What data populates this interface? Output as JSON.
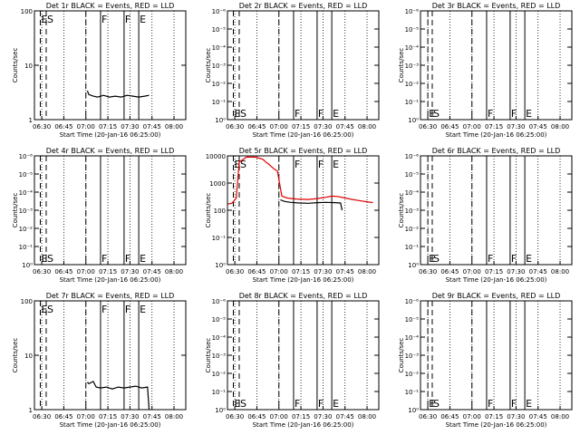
{
  "figure": {
    "background": "#ffffff",
    "colors": {
      "events": "#000000",
      "lld": "#e00000"
    }
  },
  "chart_data": [
    {
      "id": "det1r",
      "title": "Det 1r  BLACK = Events, RED = LLD",
      "xlabel": "Start Time (20-Jan-16 06:25:00)",
      "ylabel": "Counts/sec",
      "type": "line",
      "yscale": "log",
      "ylim": [
        1,
        100
      ],
      "y_ticks": [
        {
          "v": 1,
          "l": "1"
        },
        {
          "v": 10,
          "l": "10"
        },
        {
          "v": 100,
          "l": "100"
        }
      ],
      "x_ticks": [
        "06:30",
        "06:45",
        "07:00",
        "07:15",
        "07:30",
        "07:45",
        "08:00"
      ],
      "xlim": [
        "06:25",
        "08:08"
      ],
      "markers": [
        {
          "t": "06:29",
          "label": "E",
          "style": "dashed"
        },
        {
          "t": "06:33",
          "label": "S",
          "style": "dashed"
        },
        {
          "t": "07:00",
          "label": "",
          "style": "dashed"
        },
        {
          "t": "07:10",
          "label": "F",
          "style": "solid"
        },
        {
          "t": "07:26",
          "label": "F",
          "style": "solid"
        },
        {
          "t": "07:36",
          "label": "E",
          "style": "solid"
        }
      ],
      "label_position": "top",
      "series": [
        {
          "role": "events",
          "x": [
            "07:01",
            "07:02",
            "07:05",
            "07:08",
            "07:12",
            "07:16",
            "07:20",
            "07:24",
            "07:28",
            "07:32",
            "07:36",
            "07:40",
            "07:43"
          ],
          "y": [
            3.4,
            2.9,
            2.7,
            2.6,
            2.8,
            2.6,
            2.7,
            2.6,
            2.8,
            2.7,
            2.6,
            2.7,
            2.8
          ]
        }
      ]
    },
    {
      "id": "det2r",
      "title": "Det 2r  BLACK = Events, RED = LLD",
      "xlabel": "Start Time (20-Jan-16 06:25:00)",
      "ylabel": "Counts/sec",
      "type": "line",
      "yscale": "log",
      "ylim": [
        1,
        1000000
      ],
      "y_ticks": [
        {
          "v": 1,
          "l": "10⁰"
        },
        {
          "v": 10,
          "l": "10⁻¹"
        },
        {
          "v": 100,
          "l": "10⁻²"
        },
        {
          "v": 1000,
          "l": "10⁻³"
        },
        {
          "v": 10000,
          "l": "10⁻⁴"
        },
        {
          "v": 100000,
          "l": "10⁻⁵"
        },
        {
          "v": 1000000,
          "l": "10⁻⁶"
        }
      ],
      "x_ticks": [
        "06:30",
        "06:45",
        "07:00",
        "07:15",
        "07:30",
        "07:45",
        "08:00"
      ],
      "xlim": [
        "06:25",
        "08:08"
      ],
      "markers": [
        {
          "t": "06:29",
          "label": "E",
          "style": "dashed"
        },
        {
          "t": "06:33",
          "label": "S",
          "style": "dashed"
        },
        {
          "t": "07:00",
          "label": "",
          "style": "dashed"
        },
        {
          "t": "07:10",
          "label": "F",
          "style": "solid"
        },
        {
          "t": "07:26",
          "label": "F",
          "style": "solid"
        },
        {
          "t": "07:36",
          "label": "E",
          "style": "solid"
        }
      ],
      "label_position": "bottom",
      "series": []
    },
    {
      "id": "det3r",
      "title": "Det 3r  BLACK = Events, RED = LLD",
      "xlabel": "Start Time (20-Jan-16 06:25:00)",
      "ylabel": "Counts/sec",
      "type": "line",
      "yscale": "log",
      "ylim": [
        1,
        1000000
      ],
      "y_ticks": [
        {
          "v": 1,
          "l": "10⁰"
        },
        {
          "v": 10,
          "l": "10⁻¹"
        },
        {
          "v": 100,
          "l": "10⁻²"
        },
        {
          "v": 1000,
          "l": "10⁻³"
        },
        {
          "v": 10000,
          "l": "10⁻⁴"
        },
        {
          "v": 100000,
          "l": "10⁻⁵"
        },
        {
          "v": 1000000,
          "l": "10⁻⁶"
        }
      ],
      "x_ticks": [
        "06:30",
        "06:45",
        "07:00",
        "07:15",
        "07:30",
        "07:45",
        "08:00"
      ],
      "xlim": [
        "06:25",
        "08:08"
      ],
      "markers": [
        {
          "t": "06:30",
          "label": "E",
          "style": "dashed"
        },
        {
          "t": "06:33",
          "label": "S",
          "style": "dashed"
        },
        {
          "t": "07:00",
          "label": "",
          "style": "dashed"
        },
        {
          "t": "07:10",
          "label": "F",
          "style": "solid"
        },
        {
          "t": "07:26",
          "label": "F",
          "style": "solid"
        },
        {
          "t": "07:36",
          "label": "E",
          "style": "solid"
        }
      ],
      "label_position": "bottom",
      "series": []
    },
    {
      "id": "det4r",
      "title": "Det 4r  BLACK = Events, RED = LLD",
      "xlabel": "Start Time (20-Jan-16 06:25:00)",
      "ylabel": "Counts/sec",
      "type": "line",
      "yscale": "log",
      "ylim": [
        1,
        1000000
      ],
      "y_ticks": [
        {
          "v": 1,
          "l": "10⁰"
        },
        {
          "v": 10,
          "l": "10⁻¹"
        },
        {
          "v": 100,
          "l": "10⁻²"
        },
        {
          "v": 1000,
          "l": "10⁻³"
        },
        {
          "v": 10000,
          "l": "10⁻⁴"
        },
        {
          "v": 100000,
          "l": "10⁻⁵"
        },
        {
          "v": 1000000,
          "l": "10⁻⁶"
        }
      ],
      "x_ticks": [
        "06:30",
        "06:45",
        "07:00",
        "07:15",
        "07:30",
        "07:45",
        "08:00"
      ],
      "xlim": [
        "06:25",
        "08:08"
      ],
      "markers": [
        {
          "t": "06:29",
          "label": "E",
          "style": "dashed"
        },
        {
          "t": "06:33",
          "label": "S",
          "style": "dashed"
        },
        {
          "t": "07:00",
          "label": "",
          "style": "dashed"
        },
        {
          "t": "07:10",
          "label": "F",
          "style": "solid"
        },
        {
          "t": "07:26",
          "label": "F",
          "style": "solid"
        },
        {
          "t": "07:36",
          "label": "E",
          "style": "solid"
        }
      ],
      "label_position": "bottom",
      "series": []
    },
    {
      "id": "det5r",
      "title": "Det 5r  BLACK = Events, RED = LLD",
      "xlabel": "Start Time (20-Jan-16 06:25:00)",
      "ylabel": "Counts/sec",
      "type": "line",
      "yscale": "log",
      "ylim": [
        1,
        10000
      ],
      "y_ticks": [
        {
          "v": 1,
          "l": "10⁰"
        },
        {
          "v": 10,
          "l": "10⁻¹"
        },
        {
          "v": 100,
          "l": "100"
        },
        {
          "v": 1000,
          "l": "1000"
        },
        {
          "v": 10000,
          "l": "10000"
        }
      ],
      "x_ticks": [
        "06:30",
        "06:45",
        "07:00",
        "07:15",
        "07:30",
        "07:45",
        "08:00"
      ],
      "xlim": [
        "06:25",
        "08:08"
      ],
      "markers": [
        {
          "t": "06:29",
          "label": "E",
          "style": "dashed"
        },
        {
          "t": "06:33",
          "label": "S",
          "style": "dashed"
        },
        {
          "t": "07:00",
          "label": "",
          "style": "dashed"
        },
        {
          "t": "07:10",
          "label": "F",
          "style": "solid"
        },
        {
          "t": "07:26",
          "label": "F",
          "style": "solid"
        },
        {
          "t": "07:36",
          "label": "E",
          "style": "solid"
        }
      ],
      "label_position": "top",
      "series": [
        {
          "role": "lld",
          "x": [
            "06:25",
            "06:28",
            "06:31",
            "06:33",
            "06:38",
            "06:44",
            "06:49",
            "06:51",
            "06:53",
            "06:55",
            "06:57",
            "06:59",
            "07:02",
            "07:06",
            "07:12",
            "07:20",
            "07:26",
            "07:32",
            "07:36",
            "07:40",
            "07:44",
            "07:50",
            "07:56",
            "08:04"
          ],
          "y": [
            170,
            180,
            280,
            6000,
            9000,
            9000,
            7500,
            6000,
            5000,
            4000,
            3200,
            2800,
            330,
            280,
            260,
            250,
            270,
            300,
            330,
            320,
            290,
            250,
            220,
            190
          ]
        },
        {
          "role": "events",
          "x": [
            "07:01",
            "07:04",
            "07:08",
            "07:14",
            "07:20",
            "07:26",
            "07:32",
            "07:38",
            "07:42",
            "07:43"
          ],
          "y": [
            240,
            210,
            195,
            185,
            180,
            190,
            195,
            190,
            185,
            100
          ]
        }
      ]
    },
    {
      "id": "det6r",
      "title": "Det 6r  BLACK = Events, RED = LLD",
      "xlabel": "Start Time (20-Jan-16 06:25:00)",
      "ylabel": "Counts/sec",
      "type": "line",
      "yscale": "log",
      "ylim": [
        1,
        1000000
      ],
      "y_ticks": [
        {
          "v": 1,
          "l": "10⁰"
        },
        {
          "v": 10,
          "l": "10⁻¹"
        },
        {
          "v": 100,
          "l": "10⁻²"
        },
        {
          "v": 1000,
          "l": "10⁻³"
        },
        {
          "v": 10000,
          "l": "10⁻⁴"
        },
        {
          "v": 100000,
          "l": "10⁻⁵"
        },
        {
          "v": 1000000,
          "l": "10⁻⁶"
        }
      ],
      "x_ticks": [
        "06:30",
        "06:45",
        "07:00",
        "07:15",
        "07:30",
        "07:45",
        "08:00"
      ],
      "xlim": [
        "06:25",
        "08:08"
      ],
      "markers": [
        {
          "t": "06:30",
          "label": "E",
          "style": "dashed"
        },
        {
          "t": "06:33",
          "label": "S",
          "style": "dashed"
        },
        {
          "t": "07:00",
          "label": "",
          "style": "dashed"
        },
        {
          "t": "07:10",
          "label": "F",
          "style": "solid"
        },
        {
          "t": "07:26",
          "label": "F",
          "style": "solid"
        },
        {
          "t": "07:36",
          "label": "E",
          "style": "solid"
        }
      ],
      "label_position": "bottom",
      "series": []
    },
    {
      "id": "det7r",
      "title": "Det 7r  BLACK = Events, RED = LLD",
      "xlabel": "Start Time (20-Jan-16 06:25:00)",
      "ylabel": "Counts/sec",
      "type": "line",
      "yscale": "log",
      "ylim": [
        1,
        100
      ],
      "y_ticks": [
        {
          "v": 1,
          "l": "1"
        },
        {
          "v": 10,
          "l": "10"
        },
        {
          "v": 100,
          "l": "100"
        }
      ],
      "x_ticks": [
        "06:30",
        "06:45",
        "07:00",
        "07:15",
        "07:30",
        "07:45",
        "08:00"
      ],
      "xlim": [
        "06:25",
        "08:08"
      ],
      "markers": [
        {
          "t": "06:29",
          "label": "E",
          "style": "dashed"
        },
        {
          "t": "06:33",
          "label": "S",
          "style": "dashed"
        },
        {
          "t": "07:00",
          "label": "",
          "style": "dashed"
        },
        {
          "t": "07:10",
          "label": "F",
          "style": "solid"
        },
        {
          "t": "07:26",
          "label": "F",
          "style": "solid"
        },
        {
          "t": "07:36",
          "label": "E",
          "style": "solid"
        }
      ],
      "label_position": "top",
      "series": [
        {
          "role": "events",
          "x": [
            "07:01",
            "07:02",
            "07:05",
            "07:07",
            "07:10",
            "07:14",
            "07:18",
            "07:22",
            "07:26",
            "07:30",
            "07:34",
            "07:38",
            "07:42",
            "07:43"
          ],
          "y": [
            3.2,
            3.0,
            3.3,
            2.6,
            2.5,
            2.6,
            2.4,
            2.6,
            2.5,
            2.6,
            2.7,
            2.5,
            2.6,
            1.0
          ]
        }
      ]
    },
    {
      "id": "det8r",
      "title": "Det 8r  BLACK = Events, RED = LLD",
      "xlabel": "Start Time (20-Jan-16 06:25:00)",
      "ylabel": "Counts/sec",
      "type": "line",
      "yscale": "log",
      "ylim": [
        1,
        1000000
      ],
      "y_ticks": [
        {
          "v": 1,
          "l": "10⁰"
        },
        {
          "v": 10,
          "l": "10⁻¹"
        },
        {
          "v": 100,
          "l": "10⁻²"
        },
        {
          "v": 1000,
          "l": "10⁻³"
        },
        {
          "v": 10000,
          "l": "10⁻⁴"
        },
        {
          "v": 100000,
          "l": "10⁻⁵"
        },
        {
          "v": 1000000,
          "l": "10⁻⁶"
        }
      ],
      "x_ticks": [
        "06:30",
        "06:45",
        "07:00",
        "07:15",
        "07:30",
        "07:45",
        "08:00"
      ],
      "xlim": [
        "06:25",
        "08:08"
      ],
      "markers": [
        {
          "t": "06:29",
          "label": "E",
          "style": "dashed"
        },
        {
          "t": "06:33",
          "label": "S",
          "style": "dashed"
        },
        {
          "t": "07:00",
          "label": "",
          "style": "dashed"
        },
        {
          "t": "07:10",
          "label": "F",
          "style": "solid"
        },
        {
          "t": "07:26",
          "label": "F",
          "style": "solid"
        },
        {
          "t": "07:36",
          "label": "E",
          "style": "solid"
        }
      ],
      "label_position": "bottom",
      "series": []
    },
    {
      "id": "det9r",
      "title": "Det 9r  BLACK = Events, RED = LLD",
      "xlabel": "Start Time (20-Jan-16 06:25:00)",
      "ylabel": "Counts/sec",
      "type": "line",
      "yscale": "log",
      "ylim": [
        1,
        1000000
      ],
      "y_ticks": [
        {
          "v": 1,
          "l": "10⁰"
        },
        {
          "v": 10,
          "l": "10⁻¹"
        },
        {
          "v": 100,
          "l": "10⁻²"
        },
        {
          "v": 1000,
          "l": "10⁻³"
        },
        {
          "v": 10000,
          "l": "10⁻⁴"
        },
        {
          "v": 100000,
          "l": "10⁻⁵"
        },
        {
          "v": 1000000,
          "l": "10⁻⁶"
        }
      ],
      "x_ticks": [
        "06:30",
        "06:45",
        "07:00",
        "07:15",
        "07:30",
        "07:45",
        "08:00"
      ],
      "xlim": [
        "06:25",
        "08:08"
      ],
      "markers": [
        {
          "t": "06:30",
          "label": "E",
          "style": "dashed"
        },
        {
          "t": "06:33",
          "label": "S",
          "style": "dashed"
        },
        {
          "t": "07:00",
          "label": "",
          "style": "dashed"
        },
        {
          "t": "07:10",
          "label": "F",
          "style": "solid"
        },
        {
          "t": "07:26",
          "label": "F",
          "style": "solid"
        },
        {
          "t": "07:36",
          "label": "E",
          "style": "solid"
        }
      ],
      "label_position": "bottom",
      "series": []
    }
  ]
}
